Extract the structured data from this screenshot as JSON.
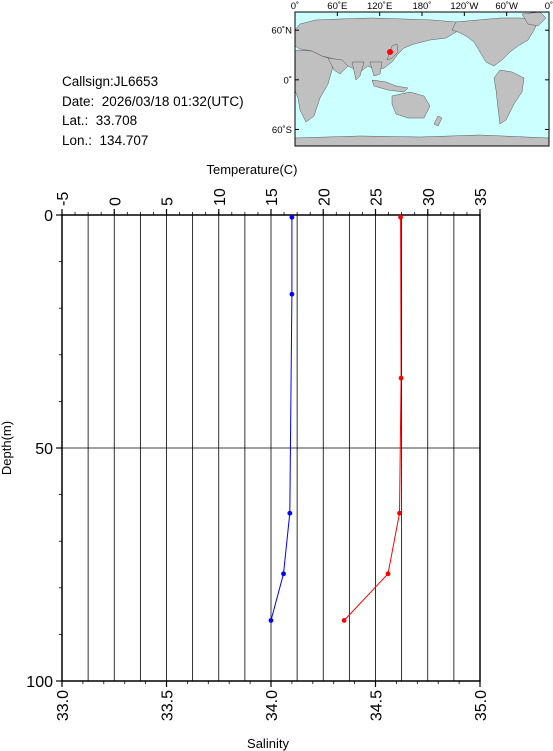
{
  "station": {
    "callsign_label": "Callsign:",
    "callsign": "JL6653",
    "date_label": "Date:",
    "date": "2026/03/18 01:32(UTC)",
    "lat_label": "Lat.:",
    "lat": "33.708",
    "lon_label": "Lon.:",
    "lon": "134.707"
  },
  "map": {
    "lon_labels": [
      "0˚",
      "60˚E",
      "120˚E",
      "180˚",
      "120˚W",
      "60˚W",
      "0˚"
    ],
    "lat_labels": [
      "60˚N",
      "0˚",
      "60˚S"
    ],
    "ocean_color": "#ccffff",
    "land_color": "#c0c0c0",
    "marker_color": "#ff0000",
    "marker_lon": 134.707,
    "marker_lat": 33.708
  },
  "chart_data": {
    "type": "line",
    "ylabel": "Depth(m)",
    "ylim": [
      100,
      0
    ],
    "y_ticks": [
      "0",
      "50",
      "100"
    ],
    "grid": true,
    "temperature_axis": {
      "label": "Temperature(C)",
      "position": "top",
      "range": [
        -5,
        35
      ],
      "ticks": [
        "-5",
        "0",
        "5",
        "10",
        "15",
        "20",
        "25",
        "30",
        "35"
      ]
    },
    "salinity_axis": {
      "label": "Salinity",
      "position": "bottom",
      "range": [
        33.0,
        35.0
      ],
      "ticks": [
        "33.0",
        "33.5",
        "34.0",
        "34.5",
        "35.0"
      ]
    },
    "series": [
      {
        "name": "Temperature(C)",
        "axis": "top",
        "color": "#ff0000",
        "points": [
          {
            "x": 27.4,
            "y": 0.5
          },
          {
            "x": 27.45,
            "y": 35
          },
          {
            "x": 27.3,
            "y": 64
          },
          {
            "x": 26.2,
            "y": 77
          },
          {
            "x": 22.0,
            "y": 87
          }
        ]
      },
      {
        "name": "Salinity",
        "axis": "bottom",
        "color": "#0000ff",
        "points": [
          {
            "x": 34.1,
            "y": 0.5
          },
          {
            "x": 34.1,
            "y": 17
          },
          {
            "x": 34.09,
            "y": 64
          },
          {
            "x": 34.06,
            "y": 77
          },
          {
            "x": 34.0,
            "y": 87
          }
        ]
      }
    ]
  }
}
